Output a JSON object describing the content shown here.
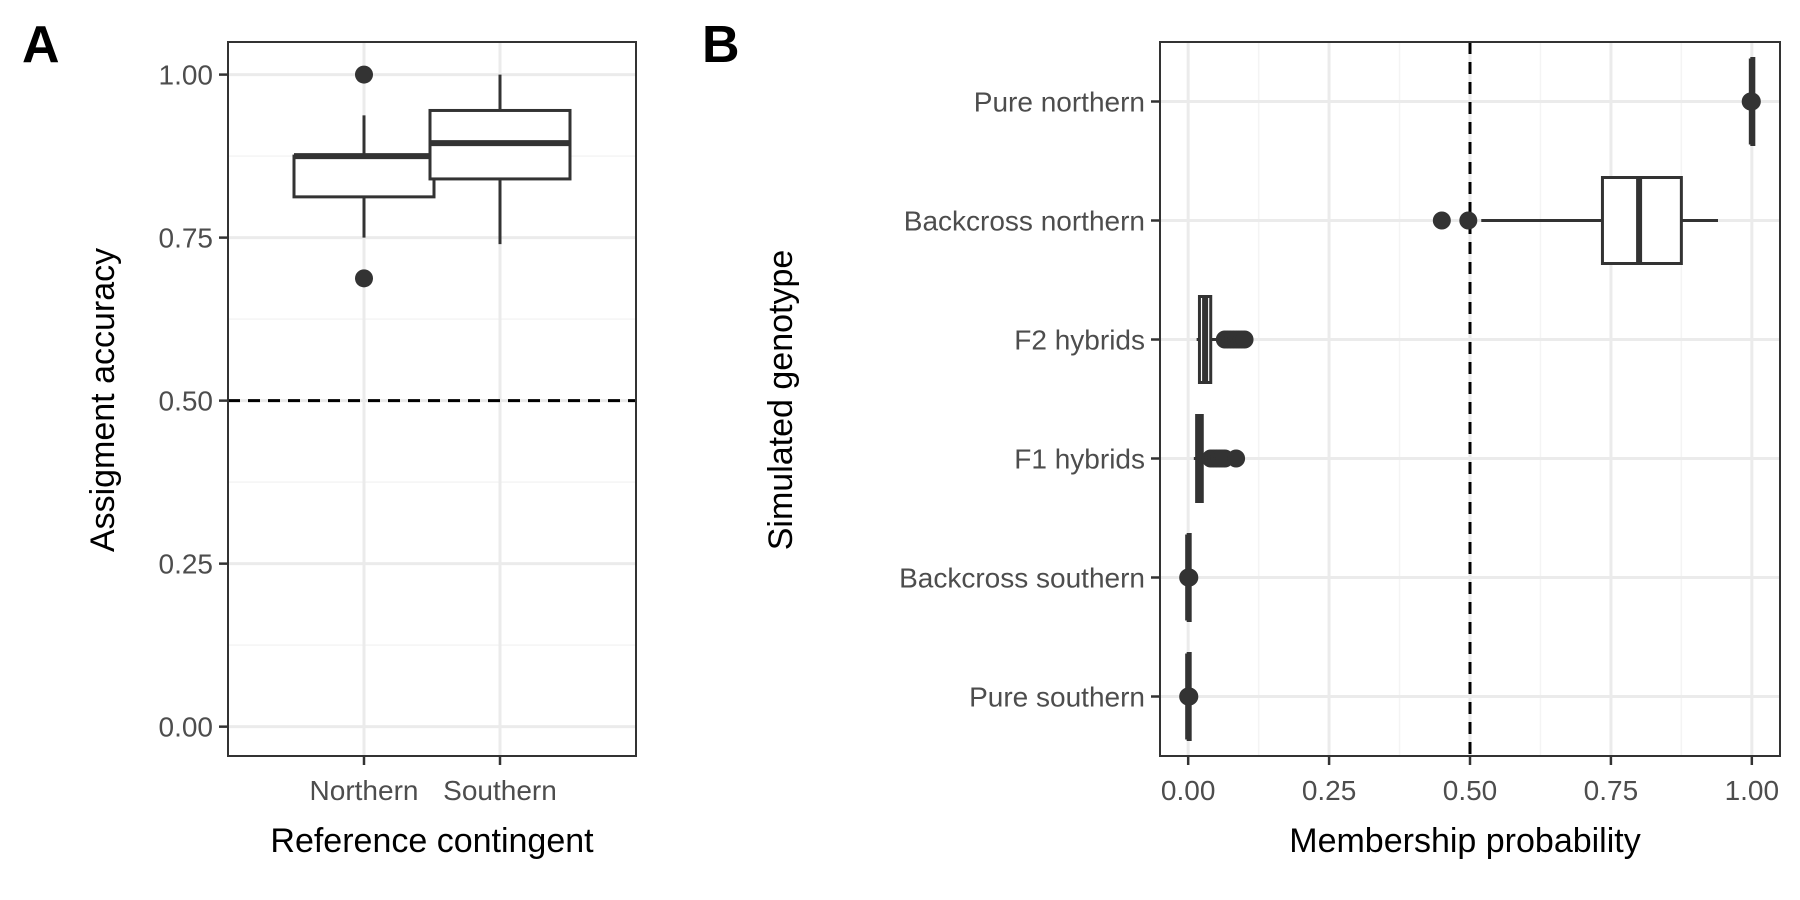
{
  "chart_data": [
    {
      "panel": "A",
      "type": "box",
      "orientation": "vertical",
      "xlabel": "Reference contingent",
      "ylabel": "Assigment accuracy",
      "categories": [
        "Northern",
        "Southern"
      ],
      "ylim": [
        -0.045,
        1.05
      ],
      "yticks": [
        0.0,
        0.25,
        0.5,
        0.75,
        1.0
      ],
      "ytick_labels": [
        "0.00",
        "0.25",
        "0.50",
        "0.75",
        "1.00"
      ],
      "reference_line": {
        "axis": "y",
        "value": 0.5,
        "style": "dashed"
      },
      "boxes": [
        {
          "category": "Northern",
          "lower_whisker": 0.75,
          "q1": 0.8125,
          "median": 0.875,
          "q3": 0.875,
          "upper_whisker": 0.9375,
          "outliers": [
            1.0,
            0.6875
          ]
        },
        {
          "category": "Southern",
          "lower_whisker": 0.74,
          "q1": 0.84,
          "median": 0.895,
          "q3": 0.945,
          "upper_whisker": 1.0,
          "outliers": []
        }
      ],
      "grid": true
    },
    {
      "panel": "B",
      "type": "box",
      "orientation": "horizontal",
      "xlabel": "Membership probability",
      "ylabel": "Simulated genotype",
      "categories": [
        "Pure northern",
        "Backcross northern",
        "F2 hybrids",
        "F1 hybrids",
        "Backcross southern",
        "Pure southern"
      ],
      "xlim": [
        -0.05,
        1.05
      ],
      "xticks": [
        0.0,
        0.25,
        0.5,
        0.75,
        1.0
      ],
      "xtick_labels": [
        "0.00",
        "0.25",
        "0.50",
        "0.75",
        "1.00"
      ],
      "reference_line": {
        "axis": "x",
        "value": 0.5,
        "style": "dashed"
      },
      "boxes": [
        {
          "category": "Pure northern",
          "lower_whisker": 1.0,
          "q1": 1.0,
          "median": 1.0,
          "q3": 1.0,
          "upper_whisker": 1.0,
          "outliers": [
            0.998,
            0.999,
            1.0
          ]
        },
        {
          "category": "Backcross northern",
          "lower_whisker": 0.52,
          "q1": 0.735,
          "median": 0.8,
          "q3": 0.875,
          "upper_whisker": 0.94,
          "outliers": [
            0.45,
            0.497
          ]
        },
        {
          "category": "F2 hybrids",
          "lower_whisker": 0.015,
          "q1": 0.02,
          "median": 0.03,
          "q3": 0.04,
          "upper_whisker": 0.055,
          "outliers": [
            0.065,
            0.07,
            0.075,
            0.08,
            0.085,
            0.09,
            0.095,
            0.1
          ]
        },
        {
          "category": "F1 hybrids",
          "lower_whisker": 0.01,
          "q1": 0.015,
          "median": 0.02,
          "q3": 0.025,
          "upper_whisker": 0.035,
          "outliers": [
            0.04,
            0.045,
            0.05,
            0.055,
            0.06,
            0.065,
            0.085
          ]
        },
        {
          "category": "Backcross southern",
          "lower_whisker": 0.0,
          "q1": 0.0,
          "median": 0.0,
          "q3": 0.0,
          "upper_whisker": 0.0,
          "outliers": [
            0.0,
            0.001,
            0.002
          ]
        },
        {
          "category": "Pure southern",
          "lower_whisker": 0.0,
          "q1": 0.0,
          "median": 0.0,
          "q3": 0.0,
          "upper_whisker": 0.0,
          "outliers": [
            0.0,
            0.001,
            0.002
          ]
        }
      ],
      "grid": true
    }
  ]
}
